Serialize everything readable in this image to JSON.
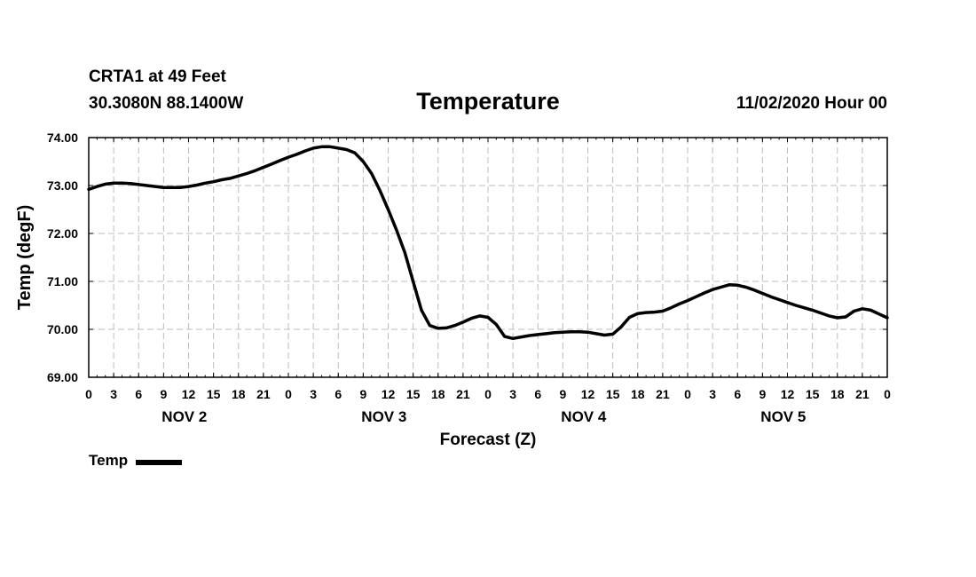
{
  "header": {
    "station": "CRTA1 at 49 Feet",
    "latlon": "30.3080N 88.1400W",
    "title": "Temperature",
    "datetime": "11/02/2020 Hour 00"
  },
  "chart_data": {
    "type": "line",
    "title": "Temperature",
    "xlabel": "Forecast (Z)",
    "ylabel": "Temp (degF)",
    "ylim": [
      69,
      74
    ],
    "xlim_hours": [
      0,
      96
    ],
    "grid": true,
    "y_ticks": [
      "69.00",
      "70.00",
      "71.00",
      "72.00",
      "73.00",
      "74.00"
    ],
    "x_tick_labels": [
      "0",
      "3",
      "6",
      "9",
      "12",
      "15",
      "18",
      "21",
      "0",
      "3",
      "6",
      "9",
      "12",
      "15",
      "18",
      "21",
      "0",
      "3",
      "6",
      "9",
      "12",
      "15",
      "18",
      "21",
      "0",
      "3",
      "6",
      "9",
      "12",
      "15",
      "18",
      "21",
      "0"
    ],
    "day_labels": [
      "NOV 2",
      "NOV 3",
      "NOV 4",
      "NOV 5"
    ],
    "legend": {
      "position": "bottom-left",
      "label": "Temp"
    },
    "series": [
      {
        "name": "Temp",
        "x_hours": [
          0,
          1,
          2,
          3,
          4,
          5,
          6,
          7,
          8,
          9,
          10,
          11,
          12,
          13,
          14,
          15,
          16,
          17,
          18,
          19,
          20,
          21,
          22,
          23,
          24,
          25,
          26,
          27,
          28,
          29,
          30,
          31,
          32,
          33,
          34,
          35,
          36,
          37,
          38,
          39,
          40,
          41,
          42,
          43,
          44,
          45,
          46,
          47,
          48,
          49,
          50,
          51,
          52,
          53,
          54,
          55,
          56,
          57,
          58,
          59,
          60,
          61,
          62,
          63,
          64,
          65,
          66,
          67,
          68,
          69,
          70,
          71,
          72,
          73,
          74,
          75,
          76,
          77,
          78,
          79,
          80,
          81,
          82,
          83,
          84,
          85,
          86,
          87,
          88,
          89,
          90,
          91,
          92,
          93,
          94,
          95,
          96
        ],
        "values": [
          72.92,
          72.98,
          73.03,
          73.05,
          73.05,
          73.04,
          73.02,
          73.0,
          72.98,
          72.96,
          72.96,
          72.96,
          72.98,
          73.01,
          73.05,
          73.08,
          73.12,
          73.15,
          73.2,
          73.25,
          73.31,
          73.38,
          73.45,
          73.52,
          73.59,
          73.65,
          73.72,
          73.78,
          73.81,
          73.81,
          73.78,
          73.75,
          73.68,
          73.5,
          73.25,
          72.9,
          72.5,
          72.07,
          71.6,
          71.0,
          70.4,
          70.08,
          70.02,
          70.03,
          70.08,
          70.15,
          70.23,
          70.28,
          70.25,
          70.1,
          69.85,
          69.81,
          69.84,
          69.87,
          69.89,
          69.91,
          69.93,
          69.94,
          69.95,
          69.95,
          69.94,
          69.91,
          69.88,
          69.9,
          70.05,
          70.25,
          70.33,
          70.35,
          70.36,
          70.38,
          70.45,
          70.53,
          70.6,
          70.68,
          70.76,
          70.83,
          70.88,
          70.93,
          70.92,
          70.88,
          70.82,
          70.75,
          70.68,
          70.62,
          70.56,
          70.5,
          70.45,
          70.4,
          70.34,
          70.28,
          70.24,
          70.26,
          70.38,
          70.43,
          70.4,
          70.32,
          70.24
        ]
      }
    ]
  }
}
